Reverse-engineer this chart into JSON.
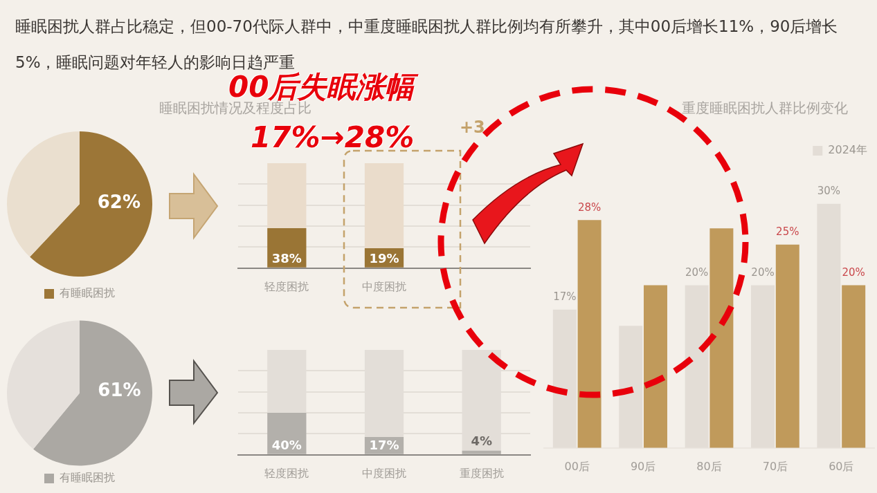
{
  "chart_data": [
    {
      "type": "other",
      "title": "睡眠困扰人群占比稳定，但00-70代际人群中，中重度睡眠困扰人群比例均有所攀升，其中00后增长11%，90后增长5%，睡眠问题对年轻人的影响日趋严重",
      "annotations": [
        "00后失眠涨幅",
        "17%→28%"
      ]
    },
    {
      "type": "pie",
      "categories": [
        "有睡眠困扰",
        null
      ],
      "values": [
        62,
        38
      ],
      "colors": [
        "#9c7637",
        "#eadfcf"
      ],
      "value_labels": [
        "62%",
        null
      ],
      "legend": "bottom"
    },
    {
      "type": "pie",
      "categories": [
        "有睡眠困扰",
        null
      ],
      "values": [
        61,
        39
      ],
      "colors": [
        "#aba8a3",
        "#e5e0db"
      ],
      "value_labels": [
        "61%",
        null
      ],
      "legend": "bottom"
    },
    {
      "type": "bar",
      "title": "睡眠困扰情况及程度占比",
      "categories": [
        "轻度困扰",
        "中度困扰",
        null
      ],
      "stacked": true,
      "ylim": [
        0,
        100
      ],
      "yticks": [
        {
          "value": 0,
          "label": null
        },
        {
          "value": 20,
          "label": null
        },
        {
          "value": 40,
          "label": null
        },
        {
          "value": 60,
          "label": null
        },
        {
          "value": 80,
          "label": null
        }
      ],
      "grid": "y",
      "tick_labels": "x",
      "annotations": [
        "+3"
      ],
      "series": [
        {
          "color": "#9a7535",
          "values": [
            38,
            19,
            null
          ],
          "value_labels": [
            "38%",
            "19%",
            null
          ]
        },
        {
          "color": "#eadccb",
          "values": [
            62,
            81,
            null
          ]
        }
      ]
    },
    {
      "type": "bar",
      "categories": [
        "轻度困扰",
        "中度困扰",
        "重度困扰"
      ],
      "stacked": true,
      "ylim": [
        0,
        100
      ],
      "yticks": [
        {
          "value": 0,
          "label": null
        },
        {
          "value": 20,
          "label": null
        },
        {
          "value": 40,
          "label": null
        },
        {
          "value": 60,
          "label": null
        },
        {
          "value": 80,
          "label": null
        }
      ],
      "grid": "y",
      "tick_labels": "x",
      "series": [
        {
          "color": "#b3b0ab",
          "values": [
            40,
            17,
            4
          ],
          "value_labels": [
            "40%",
            "17%",
            "4%"
          ]
        },
        {
          "color": "#e3ded8",
          "values": [
            60,
            83,
            96
          ]
        }
      ]
    },
    {
      "type": "bar",
      "title": "重度睡眠困扰人群比例变化",
      "categories": [
        "00后",
        "90后",
        "80后",
        "70后",
        "60后"
      ],
      "tick_labels": "x",
      "legend": "top right",
      "series": [
        {
          "name": "2024年",
          "color": "#e3ddd6",
          "values": [
            17,
            15,
            20,
            20,
            30
          ],
          "value_labels": [
            "17%",
            null,
            "20%",
            "20%",
            "30%"
          ]
        },
        {
          "color": "#c09a5b",
          "values": [
            28,
            20,
            27,
            25,
            20
          ],
          "value_labels": [
            "28%",
            null,
            null,
            "25%",
            "20%"
          ]
        }
      ]
    }
  ]
}
